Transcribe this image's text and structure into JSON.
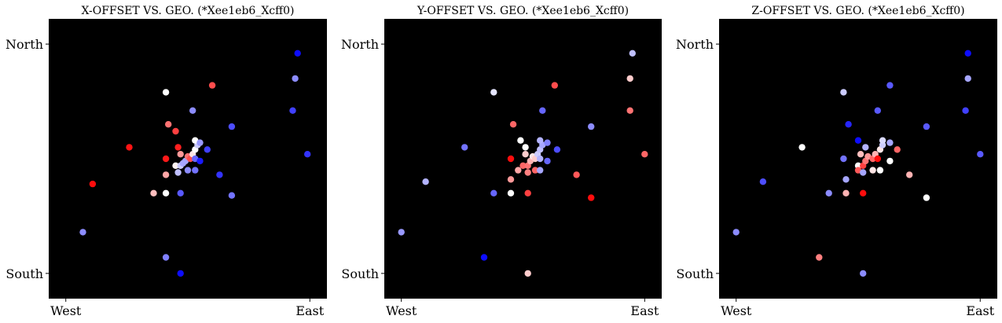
{
  "chart_data": [
    {
      "type": "scatter",
      "title": "X-OFFSET VS. GEO. (*Xee1eb6_Xcff0)",
      "xticks": [
        "West",
        "East"
      ],
      "yticks": [
        "North",
        "South"
      ],
      "xlim": [
        -0.07,
        1.07
      ],
      "ylim": [
        -0.11,
        1.11
      ],
      "background": "#000000",
      "colormap": "bwr",
      "points": [
        {
          "x": 0.07,
          "y": 0.18,
          "c": -0.45
        },
        {
          "x": 0.11,
          "y": 0.39,
          "c": 0.95
        },
        {
          "x": 0.26,
          "y": 0.55,
          "c": 0.92
        },
        {
          "x": 0.41,
          "y": 0.79,
          "c": 0.0
        },
        {
          "x": 0.6,
          "y": 0.82,
          "c": 0.7
        },
        {
          "x": 0.52,
          "y": 0.71,
          "c": -0.45
        },
        {
          "x": 0.42,
          "y": 0.65,
          "c": 0.55
        },
        {
          "x": 0.45,
          "y": 0.62,
          "c": 0.75
        },
        {
          "x": 0.46,
          "y": 0.55,
          "c": 0.88
        },
        {
          "x": 0.41,
          "y": 0.5,
          "c": 0.9
        },
        {
          "x": 0.47,
          "y": 0.52,
          "c": 0.4
        },
        {
          "x": 0.45,
          "y": 0.47,
          "c": 0.05
        },
        {
          "x": 0.47,
          "y": 0.47,
          "c": -0.2
        },
        {
          "x": 0.49,
          "y": 0.49,
          "c": -0.35
        },
        {
          "x": 0.5,
          "y": 0.51,
          "c": 0.55
        },
        {
          "x": 0.51,
          "y": 0.5,
          "c": 0.7
        },
        {
          "x": 0.52,
          "y": 0.52,
          "c": 0.1
        },
        {
          "x": 0.53,
          "y": 0.54,
          "c": 0.0
        },
        {
          "x": 0.54,
          "y": 0.56,
          "c": -0.2
        },
        {
          "x": 0.53,
          "y": 0.58,
          "c": 0.0
        },
        {
          "x": 0.55,
          "y": 0.57,
          "c": -0.4
        },
        {
          "x": 0.53,
          "y": 0.5,
          "c": -0.6
        },
        {
          "x": 0.55,
          "y": 0.49,
          "c": -0.9
        },
        {
          "x": 0.58,
          "y": 0.54,
          "c": -0.75
        },
        {
          "x": 0.48,
          "y": 0.48,
          "c": -0.35
        },
        {
          "x": 0.5,
          "y": 0.45,
          "c": -0.45
        },
        {
          "x": 0.53,
          "y": 0.45,
          "c": -0.55
        },
        {
          "x": 0.46,
          "y": 0.44,
          "c": -0.25
        },
        {
          "x": 0.41,
          "y": 0.43,
          "c": 0.35
        },
        {
          "x": 0.36,
          "y": 0.35,
          "c": 0.25
        },
        {
          "x": 0.41,
          "y": 0.35,
          "c": 0.0
        },
        {
          "x": 0.47,
          "y": 0.35,
          "c": -0.65
        },
        {
          "x": 0.63,
          "y": 0.43,
          "c": -0.8
        },
        {
          "x": 0.68,
          "y": 0.64,
          "c": -0.7
        },
        {
          "x": 0.68,
          "y": 0.34,
          "c": -0.55
        },
        {
          "x": 0.95,
          "y": 0.96,
          "c": -0.95
        },
        {
          "x": 0.94,
          "y": 0.85,
          "c": -0.45
        },
        {
          "x": 0.93,
          "y": 0.71,
          "c": -0.75
        },
        {
          "x": 0.99,
          "y": 0.52,
          "c": -0.8
        },
        {
          "x": 0.41,
          "y": 0.07,
          "c": -0.5
        },
        {
          "x": 0.47,
          "y": 0.0,
          "c": -0.95
        }
      ]
    },
    {
      "type": "scatter",
      "title": "Y-OFFSET VS. GEO. (*Xee1eb6_Xcff0)",
      "xticks": [
        "West",
        "East"
      ],
      "yticks": [
        "North",
        "South"
      ],
      "xlim": [
        -0.07,
        1.07
      ],
      "ylim": [
        -0.11,
        1.11
      ],
      "background": "#000000",
      "colormap": "bwr",
      "points": [
        {
          "x": 0.0,
          "y": 0.18,
          "c": -0.4
        },
        {
          "x": 0.1,
          "y": 0.4,
          "c": -0.3
        },
        {
          "x": 0.26,
          "y": 0.55,
          "c": -0.55
        },
        {
          "x": 0.38,
          "y": 0.79,
          "c": -0.1
        },
        {
          "x": 0.63,
          "y": 0.82,
          "c": 0.7
        },
        {
          "x": 0.58,
          "y": 0.71,
          "c": -0.6
        },
        {
          "x": 0.46,
          "y": 0.65,
          "c": 0.6
        },
        {
          "x": 0.49,
          "y": 0.58,
          "c": 0.0
        },
        {
          "x": 0.51,
          "y": 0.55,
          "c": 0.0
        },
        {
          "x": 0.45,
          "y": 0.5,
          "c": 0.95
        },
        {
          "x": 0.51,
          "y": 0.52,
          "c": 0.2
        },
        {
          "x": 0.5,
          "y": 0.47,
          "c": 0.6
        },
        {
          "x": 0.52,
          "y": 0.47,
          "c": 0.55
        },
        {
          "x": 0.53,
          "y": 0.49,
          "c": 0.3
        },
        {
          "x": 0.54,
          "y": 0.51,
          "c": 0.1
        },
        {
          "x": 0.55,
          "y": 0.5,
          "c": 0.2
        },
        {
          "x": 0.56,
          "y": 0.52,
          "c": -0.2
        },
        {
          "x": 0.57,
          "y": 0.54,
          "c": -0.25
        },
        {
          "x": 0.58,
          "y": 0.56,
          "c": -0.35
        },
        {
          "x": 0.57,
          "y": 0.58,
          "c": -0.3
        },
        {
          "x": 0.6,
          "y": 0.57,
          "c": -0.5
        },
        {
          "x": 0.57,
          "y": 0.5,
          "c": -0.3
        },
        {
          "x": 0.6,
          "y": 0.49,
          "c": -0.6
        },
        {
          "x": 0.64,
          "y": 0.54,
          "c": -0.7
        },
        {
          "x": 0.55,
          "y": 0.45,
          "c": 0.6
        },
        {
          "x": 0.48,
          "y": 0.45,
          "c": 0.35
        },
        {
          "x": 0.57,
          "y": 0.45,
          "c": -0.35
        },
        {
          "x": 0.52,
          "y": 0.44,
          "c": 0.5
        },
        {
          "x": 0.45,
          "y": 0.41,
          "c": 0.4
        },
        {
          "x": 0.38,
          "y": 0.35,
          "c": -0.6
        },
        {
          "x": 0.45,
          "y": 0.35,
          "c": 0.0
        },
        {
          "x": 0.52,
          "y": 0.35,
          "c": 0.75
        },
        {
          "x": 0.72,
          "y": 0.43,
          "c": 0.65
        },
        {
          "x": 0.78,
          "y": 0.64,
          "c": -0.45
        },
        {
          "x": 0.78,
          "y": 0.33,
          "c": 0.95
        },
        {
          "x": 0.95,
          "y": 0.96,
          "c": -0.25
        },
        {
          "x": 0.94,
          "y": 0.85,
          "c": 0.2
        },
        {
          "x": 0.94,
          "y": 0.71,
          "c": 0.55
        },
        {
          "x": 1.0,
          "y": 0.52,
          "c": 0.6
        },
        {
          "x": 0.34,
          "y": 0.07,
          "c": -0.95
        },
        {
          "x": 0.52,
          "y": 0.0,
          "c": 0.2
        }
      ]
    },
    {
      "type": "scatter",
      "title": "Z-OFFSET VS. GEO. (*Xee1eb6_Xcff0)",
      "xticks": [
        "West",
        "East"
      ],
      "yticks": [
        "North",
        "South"
      ],
      "xlim": [
        -0.07,
        1.07
      ],
      "ylim": [
        -0.11,
        1.11
      ],
      "background": "#000000",
      "colormap": "bwr",
      "points": [
        {
          "x": 0.0,
          "y": 0.18,
          "c": -0.45
        },
        {
          "x": 0.11,
          "y": 0.4,
          "c": -0.7
        },
        {
          "x": 0.27,
          "y": 0.55,
          "c": 0.0
        },
        {
          "x": 0.44,
          "y": 0.79,
          "c": -0.2
        },
        {
          "x": 0.63,
          "y": 0.82,
          "c": -0.65
        },
        {
          "x": 0.58,
          "y": 0.71,
          "c": -0.65
        },
        {
          "x": 0.46,
          "y": 0.65,
          "c": -0.85
        },
        {
          "x": 0.5,
          "y": 0.58,
          "c": -0.95
        },
        {
          "x": 0.53,
          "y": 0.55,
          "c": -0.3
        },
        {
          "x": 0.44,
          "y": 0.5,
          "c": -0.55
        },
        {
          "x": 0.51,
          "y": 0.52,
          "c": 0.25
        },
        {
          "x": 0.5,
          "y": 0.47,
          "c": 0.0
        },
        {
          "x": 0.52,
          "y": 0.47,
          "c": 0.75
        },
        {
          "x": 0.53,
          "y": 0.49,
          "c": 0.55
        },
        {
          "x": 0.54,
          "y": 0.51,
          "c": 0.4
        },
        {
          "x": 0.56,
          "y": 0.5,
          "c": 0.6
        },
        {
          "x": 0.57,
          "y": 0.52,
          "c": 0.3
        },
        {
          "x": 0.59,
          "y": 0.54,
          "c": 0.1
        },
        {
          "x": 0.6,
          "y": 0.56,
          "c": -0.2
        },
        {
          "x": 0.6,
          "y": 0.58,
          "c": -0.15
        },
        {
          "x": 0.63,
          "y": 0.57,
          "c": -0.35
        },
        {
          "x": 0.58,
          "y": 0.5,
          "c": 0.95
        },
        {
          "x": 0.63,
          "y": 0.49,
          "c": 0.0
        },
        {
          "x": 0.66,
          "y": 0.54,
          "c": 0.6
        },
        {
          "x": 0.56,
          "y": 0.45,
          "c": 0.1
        },
        {
          "x": 0.5,
          "y": 0.45,
          "c": 0.65
        },
        {
          "x": 0.59,
          "y": 0.45,
          "c": 0.0
        },
        {
          "x": 0.52,
          "y": 0.44,
          "c": -0.35
        },
        {
          "x": 0.45,
          "y": 0.41,
          "c": -0.35
        },
        {
          "x": 0.38,
          "y": 0.35,
          "c": -0.45
        },
        {
          "x": 0.45,
          "y": 0.35,
          "c": 0.3
        },
        {
          "x": 0.52,
          "y": 0.35,
          "c": 0.95
        },
        {
          "x": 0.71,
          "y": 0.43,
          "c": 0.3
        },
        {
          "x": 0.78,
          "y": 0.64,
          "c": -0.65
        },
        {
          "x": 0.78,
          "y": 0.33,
          "c": 0.0
        },
        {
          "x": 0.95,
          "y": 0.96,
          "c": -0.95
        },
        {
          "x": 0.95,
          "y": 0.85,
          "c": -0.35
        },
        {
          "x": 0.94,
          "y": 0.71,
          "c": -0.75
        },
        {
          "x": 1.0,
          "y": 0.52,
          "c": -0.65
        },
        {
          "x": 0.34,
          "y": 0.07,
          "c": 0.5
        },
        {
          "x": 0.52,
          "y": 0.0,
          "c": -0.45
        }
      ]
    }
  ]
}
